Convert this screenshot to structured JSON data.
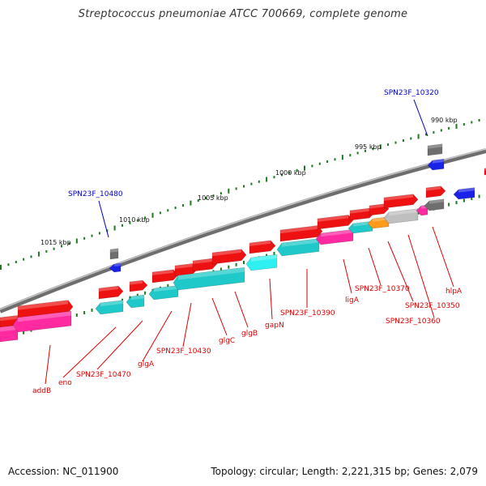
{
  "title": "Streptococcus pneumoniae ATCC 700669, complete genome",
  "footer": {
    "accession": "Accession: NC_011900",
    "summary": "Topology: circular; Length: 2,221,315 bp; Genes: 2,079"
  },
  "colors": {
    "backbone": "#8c8c8c",
    "tick_dots": "#1e7a1e",
    "gene_red": "#ee1111",
    "gene_magenta": "#ff2aa0",
    "gene_cyan": "#1fc9c9",
    "gene_light_cyan": "#2ff0f0",
    "gene_gray": "#bfbfbf",
    "gene_dark_gray": "#6e6e6e",
    "gene_orange": "#ff9a1a",
    "gene_blue": "#1a22e8",
    "label_red": "#dd0000",
    "label_blue": "#0000cc"
  },
  "scale_labels": [
    "990 kbp",
    "995 kbp",
    "1000 kbp",
    "1005 kbp",
    "1010 kbp",
    "1015 kbp"
  ],
  "gene_labels": [
    {
      "id": "addB",
      "text": "addB",
      "color": "red"
    },
    {
      "id": "eno",
      "text": "eno",
      "color": "red"
    },
    {
      "id": "spn23f-10470",
      "text": "SPN23F_10470",
      "color": "red"
    },
    {
      "id": "glga",
      "text": "glgA",
      "color": "red"
    },
    {
      "id": "spn23f-10430",
      "text": "SPN23F_10430",
      "color": "red"
    },
    {
      "id": "glgc",
      "text": "glgC",
      "color": "red"
    },
    {
      "id": "glgb",
      "text": "glgB",
      "color": "red"
    },
    {
      "id": "gapn",
      "text": "gapN",
      "color": "red"
    },
    {
      "id": "spn23f-10390",
      "text": "SPN23F_10390",
      "color": "red"
    },
    {
      "id": "liga",
      "text": "ligA",
      "color": "red"
    },
    {
      "id": "spn23f-10370",
      "text": "SPN23F_10370",
      "color": "red"
    },
    {
      "id": "spn23f-10350",
      "text": "SPN23F_10350",
      "color": "red"
    },
    {
      "id": "spn23f-10360",
      "text": "SPN23F_10360",
      "color": "red"
    },
    {
      "id": "hlpa",
      "text": "hlpA",
      "color": "red"
    },
    {
      "id": "spn23f-10480",
      "text": "SPN23F_10480",
      "color": "blue"
    },
    {
      "id": "spn23f-10320",
      "text": "SPN23F_10320",
      "color": "blue"
    }
  ]
}
